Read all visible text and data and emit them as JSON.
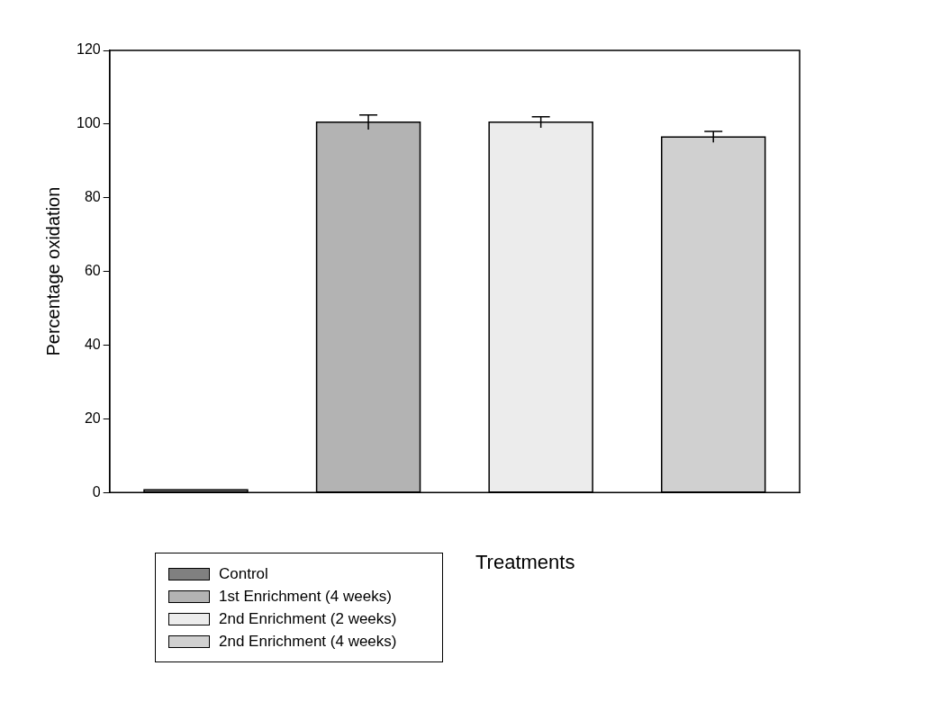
{
  "chart_data": {
    "type": "bar",
    "xlabel": "Treatments",
    "ylabel": "Percentage oxidation",
    "categories": [
      null,
      null,
      null,
      null
    ],
    "series": [
      {
        "name": "Control",
        "color": "#808080",
        "values": [
          0.7,
          null,
          null,
          null
        ]
      },
      {
        "name": "1st Enrichment (4 weeks)",
        "color": "#b3b3b3",
        "values": [
          null,
          100.5,
          null,
          null
        ],
        "errors": [
          null,
          2,
          null,
          null
        ]
      },
      {
        "name": "2nd Enrichment (2 weeks)",
        "color": "#ececec",
        "values": [
          null,
          null,
          100.5,
          null
        ],
        "errors": [
          null,
          null,
          1.5,
          null
        ]
      },
      {
        "name": "2nd Enrichment (4 weeks)",
        "color": "#d0d0d0",
        "values": [
          null,
          null,
          null,
          96.5
        ],
        "errors": [
          null,
          null,
          null,
          1.5
        ]
      }
    ],
    "ylim": [
      0,
      120
    ],
    "yticks": [
      0,
      20,
      40,
      60,
      80,
      100,
      120
    ],
    "stacked": true,
    "grid": false,
    "legend": "bottom left"
  }
}
